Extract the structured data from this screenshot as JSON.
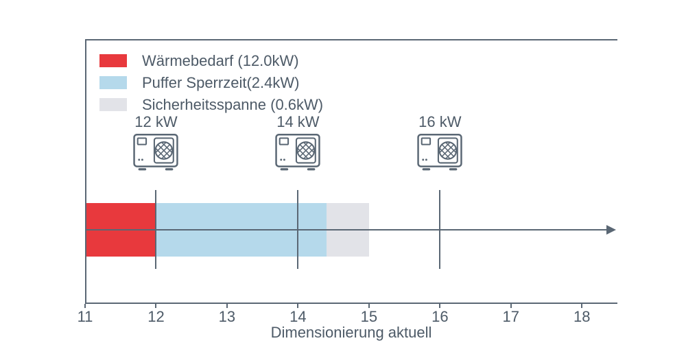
{
  "chart_data": {
    "type": "bar",
    "orientation": "horizontal-stacked",
    "xlabel": "Dimensionierung aktuell",
    "xlim": [
      11,
      18.5
    ],
    "x_ticks": [
      11,
      12,
      13,
      14,
      15,
      16,
      17,
      18
    ],
    "x_tick_labels": [
      "11",
      "12",
      "13",
      "14",
      "15",
      "16",
      "17",
      "18"
    ],
    "bar_baseline": 11,
    "grid": false,
    "legend_position": "upper-left",
    "axis_color": "#5a6774",
    "text_color": "#4d5a67",
    "segments": [
      {
        "name": "waermebedarf",
        "label": "Wärmebedarf (12.0kW)",
        "value_kw": 12.0,
        "start": 11.0,
        "end": 12.0,
        "color": "#e8393d"
      },
      {
        "name": "puffer-sperrzeit",
        "label": "Puffer Sperrzeit(2.4kW)",
        "value_kw": 2.4,
        "start": 12.0,
        "end": 14.4,
        "color": "#b5d9eb"
      },
      {
        "name": "sicherheitsspanne",
        "label": "Sicherheitsspanne (0.6kW)",
        "value_kw": 0.6,
        "start": 14.4,
        "end": 15.0,
        "color": "#e2e3e8"
      }
    ],
    "pumps": [
      {
        "label": "12 kW",
        "x": 12
      },
      {
        "label": "14 kW",
        "x": 14
      },
      {
        "label": "16 kW",
        "x": 16
      }
    ]
  }
}
